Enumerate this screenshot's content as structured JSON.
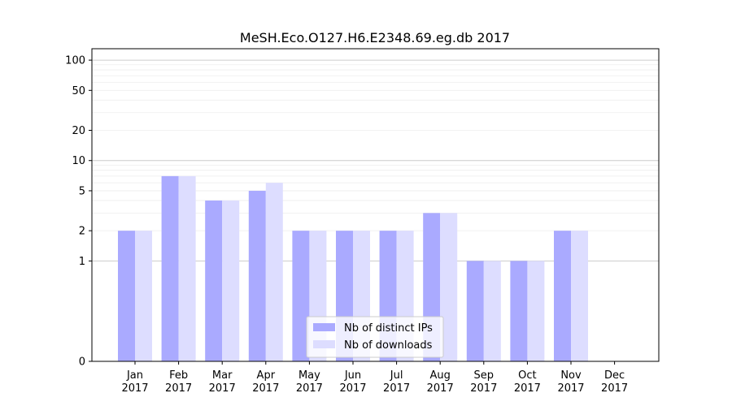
{
  "chart_data": {
    "type": "bar",
    "title": "MeSH.Eco.O127.H6.E2348.69.eg.db 2017",
    "xlabel": "",
    "ylabel": "",
    "yscale": "symlog",
    "ylim": [
      0,
      130
    ],
    "grid": "horizontal",
    "legend_position": "bottom-center",
    "categories": [
      [
        "Jan",
        "2017"
      ],
      [
        "Feb",
        "2017"
      ],
      [
        "Mar",
        "2017"
      ],
      [
        "Apr",
        "2017"
      ],
      [
        "May",
        "2017"
      ],
      [
        "Jun",
        "2017"
      ],
      [
        "Jul",
        "2017"
      ],
      [
        "Aug",
        "2017"
      ],
      [
        "Sep",
        "2017"
      ],
      [
        "Oct",
        "2017"
      ],
      [
        "Nov",
        "2017"
      ],
      [
        "Dec",
        "2017"
      ]
    ],
    "yticks": [
      0,
      1,
      2,
      5,
      10,
      20,
      50,
      100
    ],
    "series": [
      {
        "name": "Nb of distinct IPs",
        "color": "#aaaaff",
        "values": [
          2,
          7,
          4,
          5,
          2,
          2,
          2,
          3,
          1,
          1,
          2,
          0
        ]
      },
      {
        "name": "Nb of downloads",
        "color": "#ddddff",
        "values": [
          2,
          7,
          4,
          6,
          2,
          2,
          2,
          3,
          1,
          1,
          2,
          0
        ]
      }
    ]
  }
}
